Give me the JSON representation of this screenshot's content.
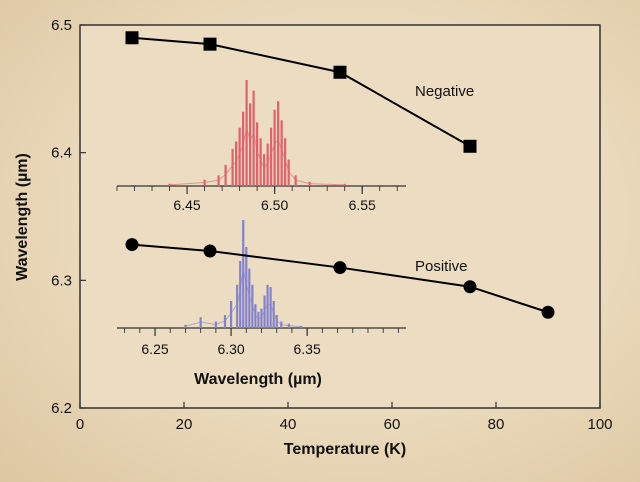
{
  "chart_data": {
    "type": "line",
    "xlabel": "Temperature (K)",
    "ylabel": "Wavelength (µm)",
    "xlim": [
      0,
      100
    ],
    "ylim": [
      6.2,
      6.5
    ],
    "x_ticks": [
      "0",
      "20",
      "40",
      "60",
      "80",
      "100"
    ],
    "y_ticks": [
      "6.2",
      "6.3",
      "6.4",
      "6.5"
    ],
    "grid": false,
    "series": [
      {
        "name": "Negative",
        "marker": "square",
        "x": [
          10,
          25,
          50,
          75
        ],
        "y": [
          6.49,
          6.485,
          6.463,
          6.405
        ]
      },
      {
        "name": "Positive",
        "marker": "circle",
        "x": [
          10,
          25,
          50,
          75,
          90
        ],
        "y": [
          6.328,
          6.323,
          6.31,
          6.295,
          6.275
        ]
      }
    ],
    "insets": [
      {
        "type": "spectrum",
        "color": "#e2606c",
        "xlim": [
          6.41,
          6.575
        ],
        "ticks": [
          "6.45",
          "6.50",
          "6.55"
        ],
        "x": [
          6.44,
          6.46,
          6.468,
          6.472,
          6.476,
          6.478,
          6.48,
          6.482,
          6.484,
          6.486,
          6.488,
          6.49,
          6.492,
          6.494,
          6.496,
          6.498,
          6.5,
          6.502,
          6.504,
          6.506,
          6.508,
          6.512,
          6.52,
          6.54
        ],
        "y": [
          0.02,
          0.06,
          0.1,
          0.2,
          0.35,
          0.42,
          0.55,
          0.7,
          1.0,
          0.78,
          0.9,
          0.6,
          0.45,
          0.3,
          0.4,
          0.55,
          0.72,
          0.8,
          0.62,
          0.45,
          0.25,
          0.1,
          0.04,
          0.02
        ]
      },
      {
        "type": "spectrum",
        "color": "#8383cc",
        "xlabel": "Wavelength (µm)",
        "xlim": [
          6.225,
          6.415
        ],
        "ticks": [
          "6.25",
          "6.30",
          "6.35"
        ],
        "x": [
          6.27,
          6.28,
          6.29,
          6.296,
          6.3,
          6.304,
          6.306,
          6.308,
          6.31,
          6.312,
          6.314,
          6.316,
          6.318,
          6.32,
          6.322,
          6.324,
          6.326,
          6.328,
          6.33,
          6.333,
          6.338,
          6.346
        ],
        "y": [
          0.03,
          0.1,
          0.06,
          0.12,
          0.25,
          0.4,
          0.62,
          1.0,
          0.75,
          0.55,
          0.4,
          0.22,
          0.15,
          0.18,
          0.3,
          0.4,
          0.38,
          0.25,
          0.12,
          0.06,
          0.04,
          0.02
        ]
      }
    ]
  }
}
